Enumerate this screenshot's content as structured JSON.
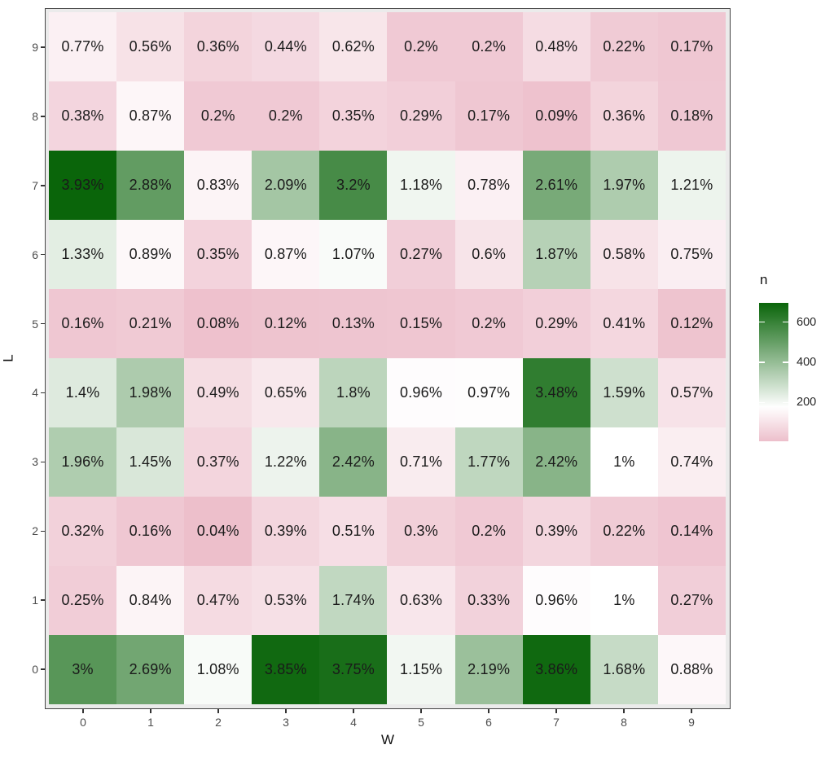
{
  "chart_data": {
    "type": "heatmap",
    "title": "",
    "xlabel": "W",
    "ylabel": "L",
    "x_categories": [
      "0",
      "1",
      "2",
      "3",
      "4",
      "5",
      "6",
      "7",
      "8",
      "9"
    ],
    "y_categories_top_to_bottom": [
      "9",
      "8",
      "7",
      "6",
      "5",
      "4",
      "3",
      "2",
      "1",
      "0"
    ],
    "cell_value_unit": "percent",
    "rows": [
      {
        "L": "9",
        "labels": [
          "0.77%",
          "0.56%",
          "0.36%",
          "0.44%",
          "0.62%",
          "0.2%",
          "0.2%",
          "0.48%",
          "0.22%",
          "0.17%"
        ],
        "values": [
          0.77,
          0.56,
          0.36,
          0.44,
          0.62,
          0.2,
          0.2,
          0.48,
          0.22,
          0.17
        ]
      },
      {
        "L": "8",
        "labels": [
          "0.38%",
          "0.87%",
          "0.2%",
          "0.2%",
          "0.35%",
          "0.29%",
          "0.17%",
          "0.09%",
          "0.36%",
          "0.18%"
        ],
        "values": [
          0.38,
          0.87,
          0.2,
          0.2,
          0.35,
          0.29,
          0.17,
          0.09,
          0.36,
          0.18
        ]
      },
      {
        "L": "7",
        "labels": [
          "3.93%",
          "2.88%",
          "0.83%",
          "2.09%",
          "3.2%",
          "1.18%",
          "0.78%",
          "2.61%",
          "1.97%",
          "1.21%"
        ],
        "values": [
          3.93,
          2.88,
          0.83,
          2.09,
          3.2,
          1.18,
          0.78,
          2.61,
          1.97,
          1.21
        ]
      },
      {
        "L": "6",
        "labels": [
          "1.33%",
          "0.89%",
          "0.35%",
          "0.87%",
          "1.07%",
          "0.27%",
          "0.6%",
          "1.87%",
          "0.58%",
          "0.75%"
        ],
        "values": [
          1.33,
          0.89,
          0.35,
          0.87,
          1.07,
          0.27,
          0.6,
          1.87,
          0.58,
          0.75
        ]
      },
      {
        "L": "5",
        "labels": [
          "0.16%",
          "0.21%",
          "0.08%",
          "0.12%",
          "0.13%",
          "0.15%",
          "0.2%",
          "0.29%",
          "0.41%",
          "0.12%"
        ],
        "values": [
          0.16,
          0.21,
          0.08,
          0.12,
          0.13,
          0.15,
          0.2,
          0.29,
          0.41,
          0.12
        ]
      },
      {
        "L": "4",
        "labels": [
          "1.4%",
          "1.98%",
          "0.49%",
          "0.65%",
          "1.8%",
          "0.96%",
          "0.97%",
          "3.48%",
          "1.59%",
          "0.57%"
        ],
        "values": [
          1.4,
          1.98,
          0.49,
          0.65,
          1.8,
          0.96,
          0.97,
          3.48,
          1.59,
          0.57
        ]
      },
      {
        "L": "3",
        "labels": [
          "1.96%",
          "1.45%",
          "0.37%",
          "1.22%",
          "2.42%",
          "0.71%",
          "1.77%",
          "2.42%",
          "1%",
          "0.74%"
        ],
        "values": [
          1.96,
          1.45,
          0.37,
          1.22,
          2.42,
          0.71,
          1.77,
          2.42,
          1.0,
          0.74
        ]
      },
      {
        "L": "2",
        "labels": [
          "0.32%",
          "0.16%",
          "0.04%",
          "0.39%",
          "0.51%",
          "0.3%",
          "0.2%",
          "0.39%",
          "0.22%",
          "0.14%"
        ],
        "values": [
          0.32,
          0.16,
          0.04,
          0.39,
          0.51,
          0.3,
          0.2,
          0.39,
          0.22,
          0.14
        ]
      },
      {
        "L": "1",
        "labels": [
          "0.25%",
          "0.84%",
          "0.47%",
          "0.53%",
          "1.74%",
          "0.63%",
          "0.33%",
          "0.96%",
          "1%",
          "0.27%"
        ],
        "values": [
          0.25,
          0.84,
          0.47,
          0.53,
          1.74,
          0.63,
          0.33,
          0.96,
          1.0,
          0.27
        ]
      },
      {
        "L": "0",
        "labels": [
          "3%",
          "2.69%",
          "1.08%",
          "3.85%",
          "3.75%",
          "1.15%",
          "2.19%",
          "3.86%",
          "1.68%",
          "0.88%"
        ],
        "values": [
          3.0,
          2.69,
          1.08,
          3.85,
          3.75,
          1.15,
          2.19,
          3.86,
          1.68,
          0.88
        ]
      }
    ],
    "legend": {
      "title": "n",
      "ticks": [
        {
          "label": "600",
          "n": 600
        },
        {
          "label": "400",
          "n": 400
        },
        {
          "label": "200",
          "n": 200
        }
      ],
      "position": "right"
    },
    "colors": {
      "high_green": "#0A650A",
      "mid_white": "#FFFFFF",
      "low_pink": "#ECBCC9",
      "panel_background": "#EBEBEB",
      "panel_border": "#454545",
      "axis_tick_text": "#4D4D4D",
      "cell_text": "#1A1A1A"
    },
    "axis_ranges": {
      "midpoint_percent": 1.0,
      "max_percent": 3.93,
      "legend_n_min": 7,
      "legend_n_max": 696
    },
    "grid": "hidden-under-tiles"
  }
}
